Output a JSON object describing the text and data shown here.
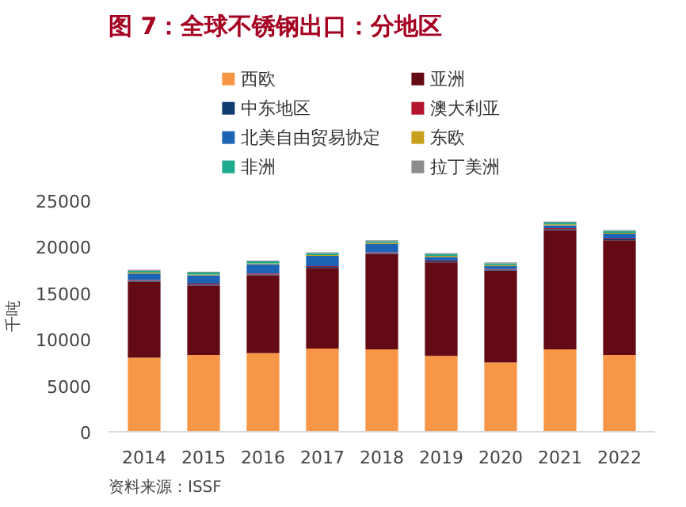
{
  "chart_data": {
    "type": "bar",
    "stacked": true,
    "title": "图 7：全球不锈钢出口：分地区",
    "ylabel": "千吨",
    "categories": [
      "2014",
      "2015",
      "2016",
      "2017",
      "2018",
      "2019",
      "2020",
      "2021",
      "2022"
    ],
    "series": [
      {
        "name": "西欧",
        "color": "#f79646",
        "values": [
          8000,
          8300,
          8500,
          9000,
          8900,
          8200,
          7500,
          8900,
          8300
        ]
      },
      {
        "name": "亚洲",
        "color": "#640a14",
        "values": [
          8200,
          7500,
          8400,
          8700,
          10300,
          10100,
          9900,
          12900,
          12400
        ]
      },
      {
        "name": "中东地区",
        "color": "#0f3c6e",
        "values": [
          100,
          100,
          100,
          100,
          100,
          100,
          100,
          100,
          100
        ]
      },
      {
        "name": "澳大利亚",
        "color": "#b4142d",
        "values": [
          100,
          100,
          100,
          100,
          100,
          100,
          100,
          100,
          100
        ]
      },
      {
        "name": "北美自由贸易协定",
        "color": "#1e64b4",
        "values": [
          700,
          900,
          1000,
          1100,
          900,
          400,
          300,
          300,
          500
        ]
      },
      {
        "name": "东欧",
        "color": "#c8a01e",
        "values": [
          100,
          100,
          100,
          100,
          100,
          100,
          100,
          100,
          100
        ]
      },
      {
        "name": "非洲",
        "color": "#1eaa8c",
        "values": [
          200,
          200,
          200,
          200,
          200,
          200,
          200,
          200,
          200
        ]
      },
      {
        "name": "拉丁美洲",
        "color": "#8c8c8c",
        "values": [
          100,
          100,
          100,
          100,
          100,
          100,
          100,
          100,
          100
        ]
      }
    ],
    "ylim": [
      0,
      25000
    ],
    "yticks": [
      0,
      5000,
      10000,
      15000,
      20000,
      25000
    ],
    "grid": false,
    "legend": "top",
    "annotations": [
      "资料来源：ISSF"
    ]
  }
}
